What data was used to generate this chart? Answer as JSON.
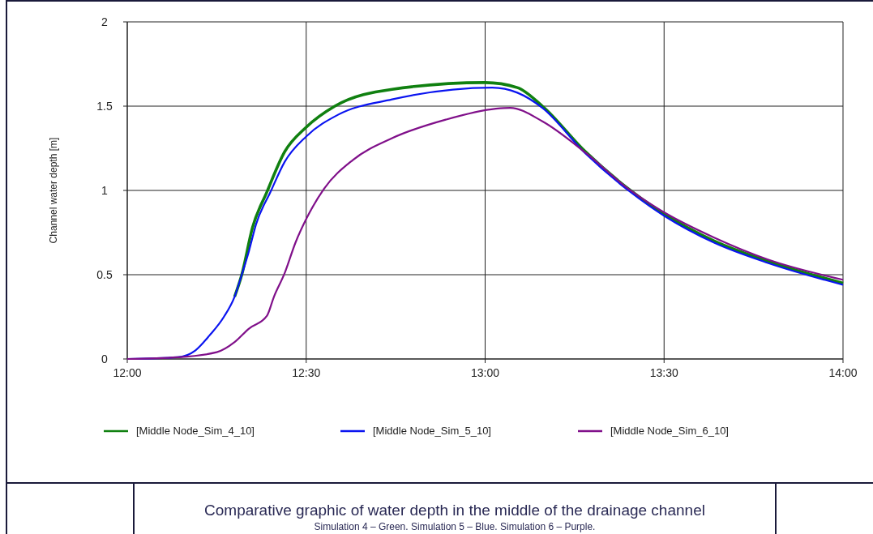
{
  "chart_data": {
    "type": "line",
    "title": "Comparative graphic of water depth in the middle of the drainage channel",
    "subtitle": "Simulation 4 – Green. Simulation 5 – Blue. Simulation 6 – Purple.",
    "ylabel": "Channel water depth [m]",
    "xlim": [
      12,
      14
    ],
    "xticks": [
      {
        "value": 12,
        "label": "12:00"
      },
      {
        "value": 12.5,
        "label": "12:30"
      },
      {
        "value": 13,
        "label": "13:00"
      },
      {
        "value": 13.5,
        "label": "13:30"
      },
      {
        "value": 14,
        "label": "14:00"
      }
    ],
    "ylim": [
      0,
      2
    ],
    "yticks": [
      0,
      0.5,
      1,
      1.5,
      2
    ],
    "grid": true,
    "legend": "bottom",
    "line_style": "solid",
    "series": [
      {
        "name": "[Middle Node_Sim_4_10]",
        "color": "#108010",
        "x": [
          12.3,
          12.32,
          12.35,
          12.39,
          12.44,
          12.5,
          12.58,
          12.74,
          13.0,
          13.09,
          13.16,
          13.28,
          13.4,
          13.5,
          13.64,
          13.79,
          14
        ],
        "values": [
          0.37,
          0.5,
          0.78,
          0.99,
          1.23,
          1.375,
          1.5,
          1.6,
          1.64,
          1.61,
          1.5,
          1.23,
          1.01,
          0.86,
          0.7,
          0.58,
          0.45
        ]
      },
      {
        "name": "[Middle Node_Sim_5_10]",
        "color": "#0a14f0",
        "x": [
          12,
          12.14,
          12.19,
          12.23,
          12.27,
          12.3,
          12.32,
          12.34,
          12.36,
          12.4,
          12.44,
          12.5,
          12.59,
          12.74,
          13.02,
          13.09,
          13.16,
          13.28,
          13.4,
          13.5,
          13.64,
          13.79,
          14
        ],
        "values": [
          0,
          0.01,
          0.05,
          0.14,
          0.25,
          0.37,
          0.5,
          0.64,
          0.8,
          0.99,
          1.17,
          1.32,
          1.45,
          1.54,
          1.61,
          1.58,
          1.49,
          1.22,
          1.0,
          0.85,
          0.69,
          0.57,
          0.44
        ]
      },
      {
        "name": "[Middle Node_Sim_6_10]",
        "color": "#80108a",
        "x": [
          12,
          12.14,
          12.25,
          12.3,
          12.34,
          12.39,
          12.41,
          12.44,
          12.47,
          12.5,
          12.55,
          12.63,
          12.74,
          12.89,
          13.03,
          13.07,
          13.16,
          13.28,
          13.4,
          13.5,
          13.64,
          13.79,
          14
        ],
        "values": [
          0,
          0.01,
          0.04,
          0.1,
          0.18,
          0.255,
          0.37,
          0.51,
          0.69,
          0.83,
          1.01,
          1.18,
          1.31,
          1.42,
          1.485,
          1.49,
          1.41,
          1.225,
          1.01,
          0.87,
          0.72,
          0.59,
          0.47
        ]
      }
    ]
  }
}
